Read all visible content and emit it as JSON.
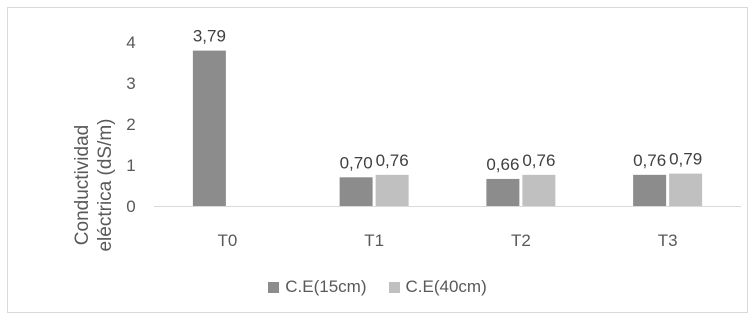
{
  "chart_data": {
    "type": "bar",
    "categories": [
      "T0",
      "T1",
      "T2",
      "T3"
    ],
    "series": [
      {
        "name": "C.E(15cm)",
        "color": "#8c8c8c",
        "values": [
          3.79,
          0.7,
          0.66,
          0.76
        ],
        "labels": [
          "3,79",
          "0,70",
          "0,66",
          "0,76"
        ]
      },
      {
        "name": "C.E(40cm)",
        "color": "#c0c0c0",
        "values": [
          null,
          0.76,
          0.76,
          0.79
        ],
        "labels": [
          "",
          "0,76",
          "0,76",
          "0,79"
        ]
      }
    ],
    "ylabel_line1": "Conductividad",
    "ylabel_line2": "eléctrica (dS/m)",
    "ylim": [
      0,
      4
    ],
    "yticks": [
      "0",
      "1",
      "2",
      "3",
      "4"
    ],
    "grid": false,
    "legend_position": "bottom"
  }
}
